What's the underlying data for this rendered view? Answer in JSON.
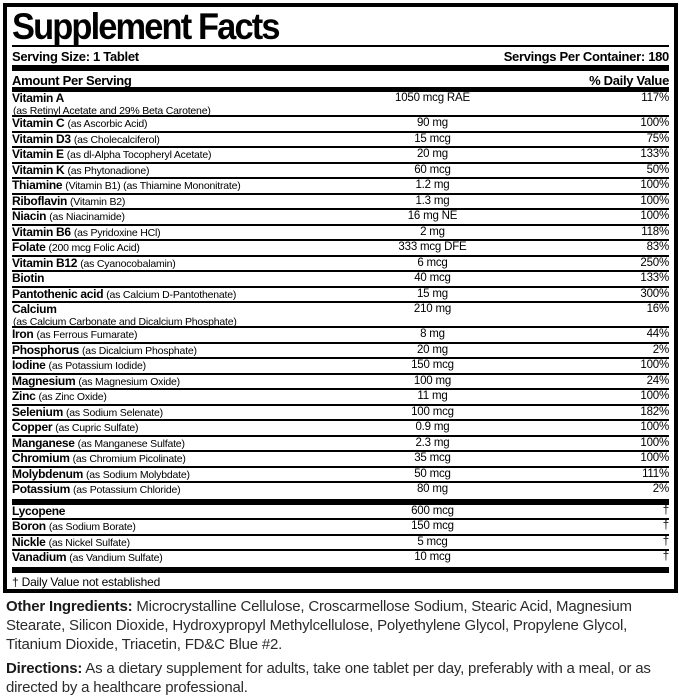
{
  "title": "Supplement Facts",
  "serving": {
    "size_label": "Serving Size: 1 Tablet",
    "per_container_label": "Servings Per Container: 180"
  },
  "columns": {
    "amount_header": "Amount Per Serving",
    "dv_header": "% Daily Value"
  },
  "nutrients": [
    {
      "name": "Vitamin A",
      "detail": "(as Retinyl Acetate and 29% Beta Carotene)",
      "amount": "1050 mcg RAE",
      "dv": "117%",
      "two_line": true
    },
    {
      "name": "Vitamin C",
      "detail": "(as Ascorbic Acid)",
      "amount": "90 mg",
      "dv": "100%"
    },
    {
      "name": "Vitamin D3",
      "detail": "(as Cholecalciferol)",
      "amount": "15 mcg",
      "dv": "75%"
    },
    {
      "name": "Vitamin E",
      "detail": "(as dl-Alpha Tocopheryl Acetate)",
      "amount": "20 mg",
      "dv": "133%"
    },
    {
      "name": "Vitamin K",
      "detail": "(as Phytonadione)",
      "amount": "60 mcg",
      "dv": "50%"
    },
    {
      "name": "Thiamine",
      "detail": "(Vitamin B1) (as Thiamine Mononitrate)",
      "amount": "1.2 mg",
      "dv": "100%"
    },
    {
      "name": "Riboflavin",
      "detail": "(Vitamin B2)",
      "amount": "1.3 mg",
      "dv": "100%"
    },
    {
      "name": "Niacin",
      "detail": "(as Niacinamide)",
      "amount": "16 mg NE",
      "dv": "100%"
    },
    {
      "name": "Vitamin B6",
      "detail": "(as Pyridoxine HCl)",
      "amount": "2 mg",
      "dv": "118%"
    },
    {
      "name": "Folate",
      "detail": "(200 mcg Folic Acid)",
      "amount": "333 mcg DFE",
      "dv": "83%"
    },
    {
      "name": "Vitamin B12",
      "detail": "(as Cyanocobalamin)",
      "amount": "6 mcg",
      "dv": "250%"
    },
    {
      "name": "Biotin",
      "detail": "",
      "amount": "40 mcg",
      "dv": "133%"
    },
    {
      "name": "Pantothenic acid",
      "detail": "(as Calcium D-Pantothenate)",
      "amount": "15 mg",
      "dv": "300%"
    },
    {
      "name": "Calcium",
      "detail": "(as Calcium Carbonate and Dicalcium Phosphate)",
      "amount": "210 mg",
      "dv": "16%",
      "two_line": true
    },
    {
      "name": "Iron",
      "detail": "(as Ferrous Fumarate)",
      "amount": "8 mg",
      "dv": "44%"
    },
    {
      "name": "Phosphorus",
      "detail": "(as Dicalcium Phosphate)",
      "amount": "20 mg",
      "dv": "2%"
    },
    {
      "name": "Iodine",
      "detail": "(as Potassium Iodide)",
      "amount": "150 mcg",
      "dv": "100%"
    },
    {
      "name": "Magnesium",
      "detail": "(as Magnesium Oxide)",
      "amount": "100 mg",
      "dv": "24%"
    },
    {
      "name": "Zinc",
      "detail": "(as Zinc Oxide)",
      "amount": "11 mg",
      "dv": "100%"
    },
    {
      "name": "Selenium",
      "detail": "(as Sodium Selenate)",
      "amount": "100 mcg",
      "dv": "182%"
    },
    {
      "name": "Copper",
      "detail": "(as Cupric Sulfate)",
      "amount": "0.9 mg",
      "dv": "100%"
    },
    {
      "name": "Manganese",
      "detail": "(as Manganese Sulfate)",
      "amount": "2.3 mg",
      "dv": "100%"
    },
    {
      "name": "Chromium",
      "detail": "(as Chromium Picolinate)",
      "amount": "35 mcg",
      "dv": "100%"
    },
    {
      "name": "Molybdenum",
      "detail": "(as Sodium Molybdate)",
      "amount": "50 mcg",
      "dv": "111%"
    },
    {
      "name": "Potassium",
      "detail": "(as Potassium Chloride)",
      "amount": "80 mg",
      "dv": "2%"
    }
  ],
  "other_compounds": [
    {
      "name": "Lycopene",
      "detail": "",
      "amount": "600 mcg",
      "dv": "†"
    },
    {
      "name": "Boron",
      "detail": "(as Sodium Borate)",
      "amount": "150 mcg",
      "dv": "†"
    },
    {
      "name": "Nickle",
      "detail": "(as Nickel Sulfate)",
      "amount": "5 mcg",
      "dv": "†"
    },
    {
      "name": "Vanadium",
      "detail": "(as Vandium Sulfate)",
      "amount": "10 mcg",
      "dv": "†"
    }
  ],
  "footnote": "† Daily Value not established",
  "other_ingredients": {
    "label": "Other Ingredients:",
    "text": " Microcrystalline Cellulose, Croscarmellose Sodium, Stearic Acid, Magnesium Stearate, Silicon Dioxide, Hydroxypropyl Methylcellulose, Polyethylene Glycol, Propylene Glycol, Titanium Dioxide, Triacetin, FD&C Blue #2."
  },
  "directions": {
    "label": "Directions:",
    "text": " As a dietary supplement for adults, take one tablet per day, preferably with a meal, or as directed by a healthcare professional."
  },
  "colors": {
    "ink": "#000000",
    "paper": "#ffffff"
  }
}
